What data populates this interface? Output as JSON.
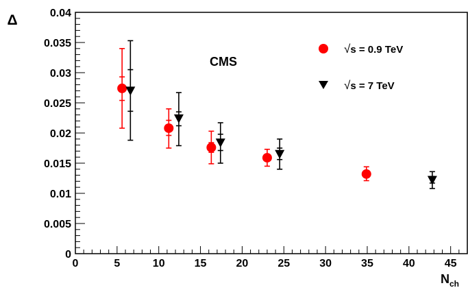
{
  "chart_data": {
    "type": "scatter",
    "title": "",
    "annotation": "CMS",
    "xlabel": "N",
    "xlabel_sub": "ch",
    "ylabel": "Δ",
    "xlim": [
      0,
      47
    ],
    "ylim": [
      0,
      0.04
    ],
    "x_ticks": [
      "0",
      "5",
      "10",
      "15",
      "20",
      "25",
      "30",
      "35",
      "40",
      "45"
    ],
    "y_ticks": [
      "0",
      "0.005",
      "0.01",
      "0.015",
      "0.02",
      "0.025",
      "0.03",
      "0.035",
      "0.04"
    ],
    "grid": false,
    "legend_position": "top-right",
    "series": [
      {
        "name": "√s = 0.9 TeV",
        "legend_sqrt": "√",
        "legend_rest": "s = 0.9 TeV",
        "color": "#ff0000",
        "marker": "circle",
        "points": [
          {
            "x": 5.6,
            "y": 0.0274,
            "stat": [
              0.0254,
              0.0293
            ],
            "tot": [
              0.0208,
              0.034
            ]
          },
          {
            "x": 11.2,
            "y": 0.0208,
            "stat": [
              0.0196,
              0.0221
            ],
            "tot": [
              0.0175,
              0.024
            ]
          },
          {
            "x": 16.3,
            "y": 0.0176,
            "stat": [
              0.0168,
              0.0184
            ],
            "tot": [
              0.0149,
              0.0203
            ]
          },
          {
            "x": 23.0,
            "y": 0.0159,
            "stat": [
              0.0155,
              0.0163
            ],
            "tot": [
              0.0145,
              0.0173
            ]
          },
          {
            "x": 34.9,
            "y": 0.0132,
            "stat": [
              0.0128,
              0.0136
            ],
            "tot": [
              0.0121,
              0.0144
            ]
          }
        ]
      },
      {
        "name": "√s = 7 TeV",
        "legend_sqrt": "√",
        "legend_rest": "s = 7 TeV",
        "color": "#000000",
        "marker": "triangle-down",
        "points": [
          {
            "x": 6.6,
            "y": 0.027,
            "stat": [
              0.0236,
              0.0305
            ],
            "tot": [
              0.0188,
              0.0353
            ]
          },
          {
            "x": 12.4,
            "y": 0.0224,
            "stat": [
              0.0212,
              0.0235
            ],
            "tot": [
              0.0179,
              0.0267
            ]
          },
          {
            "x": 17.4,
            "y": 0.0184,
            "stat": [
              0.0171,
              0.0198
            ],
            "tot": [
              0.015,
              0.0217
            ]
          },
          {
            "x": 24.5,
            "y": 0.0165,
            "stat": [
              0.0156,
              0.0175
            ],
            "tot": [
              0.014,
              0.019
            ]
          },
          {
            "x": 42.8,
            "y": 0.0122,
            "stat": [
              0.0117,
              0.0128
            ],
            "tot": [
              0.0108,
              0.0136
            ]
          }
        ]
      }
    ]
  }
}
